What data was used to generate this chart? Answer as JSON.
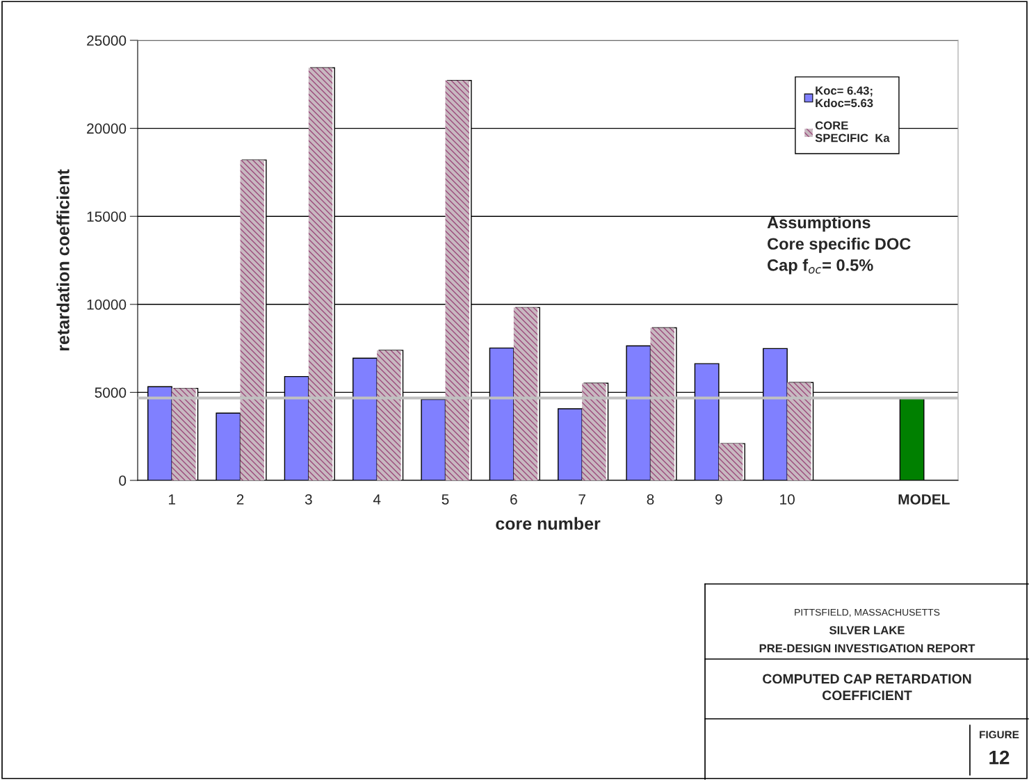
{
  "chart_data": {
    "type": "bar",
    "title": "COMPUTED CAP RETARDATION\nCOEFFICIENT",
    "xlabel": "core number",
    "ylabel": "retardation coefficient",
    "categories": [
      "1",
      "2",
      "3",
      "4",
      "5",
      "6",
      "7",
      "8",
      "9",
      "10",
      null,
      "MODEL"
    ],
    "series": [
      {
        "name": "Koc= 6.43;\nKdoc=5.63",
        "color": "#8080ff",
        "values": [
          5320,
          3820,
          5900,
          6940,
          4600,
          7520,
          4070,
          7640,
          6630,
          7490,
          null,
          4650
        ],
        "colors": [
          "#8080ff",
          "#8080ff",
          "#8080ff",
          "#8080ff",
          "#8080ff",
          "#8080ff",
          "#8080ff",
          "#8080ff",
          "#8080ff",
          "#8080ff",
          "#8080ff",
          "#008000"
        ]
      },
      {
        "name": "CORE\nSPECIFIC  Ka",
        "color": "#9b4a7b",
        "values": [
          5230,
          18200,
          23440,
          7390,
          22720,
          9820,
          5520,
          8670,
          2090,
          5560,
          null,
          null
        ]
      }
    ],
    "ylim": [
      0,
      25000
    ],
    "yticks": [
      0,
      5000,
      10000,
      15000,
      20000,
      25000
    ],
    "grid": "y",
    "legend": "top right",
    "ref_lines": [
      {
        "axis": "y",
        "value": 4680,
        "color": "#c0c0c0"
      }
    ],
    "annotations": [
      "Assumptions\nCore specific DOC\nCap f$_{oc}$= 0.5%",
      "PITTSFIELD, MASSACHUSETTS",
      "SILVER LAKE",
      "PRE-DESIGN INVESTIGATION REPORT",
      "FIGURE",
      "12"
    ]
  }
}
